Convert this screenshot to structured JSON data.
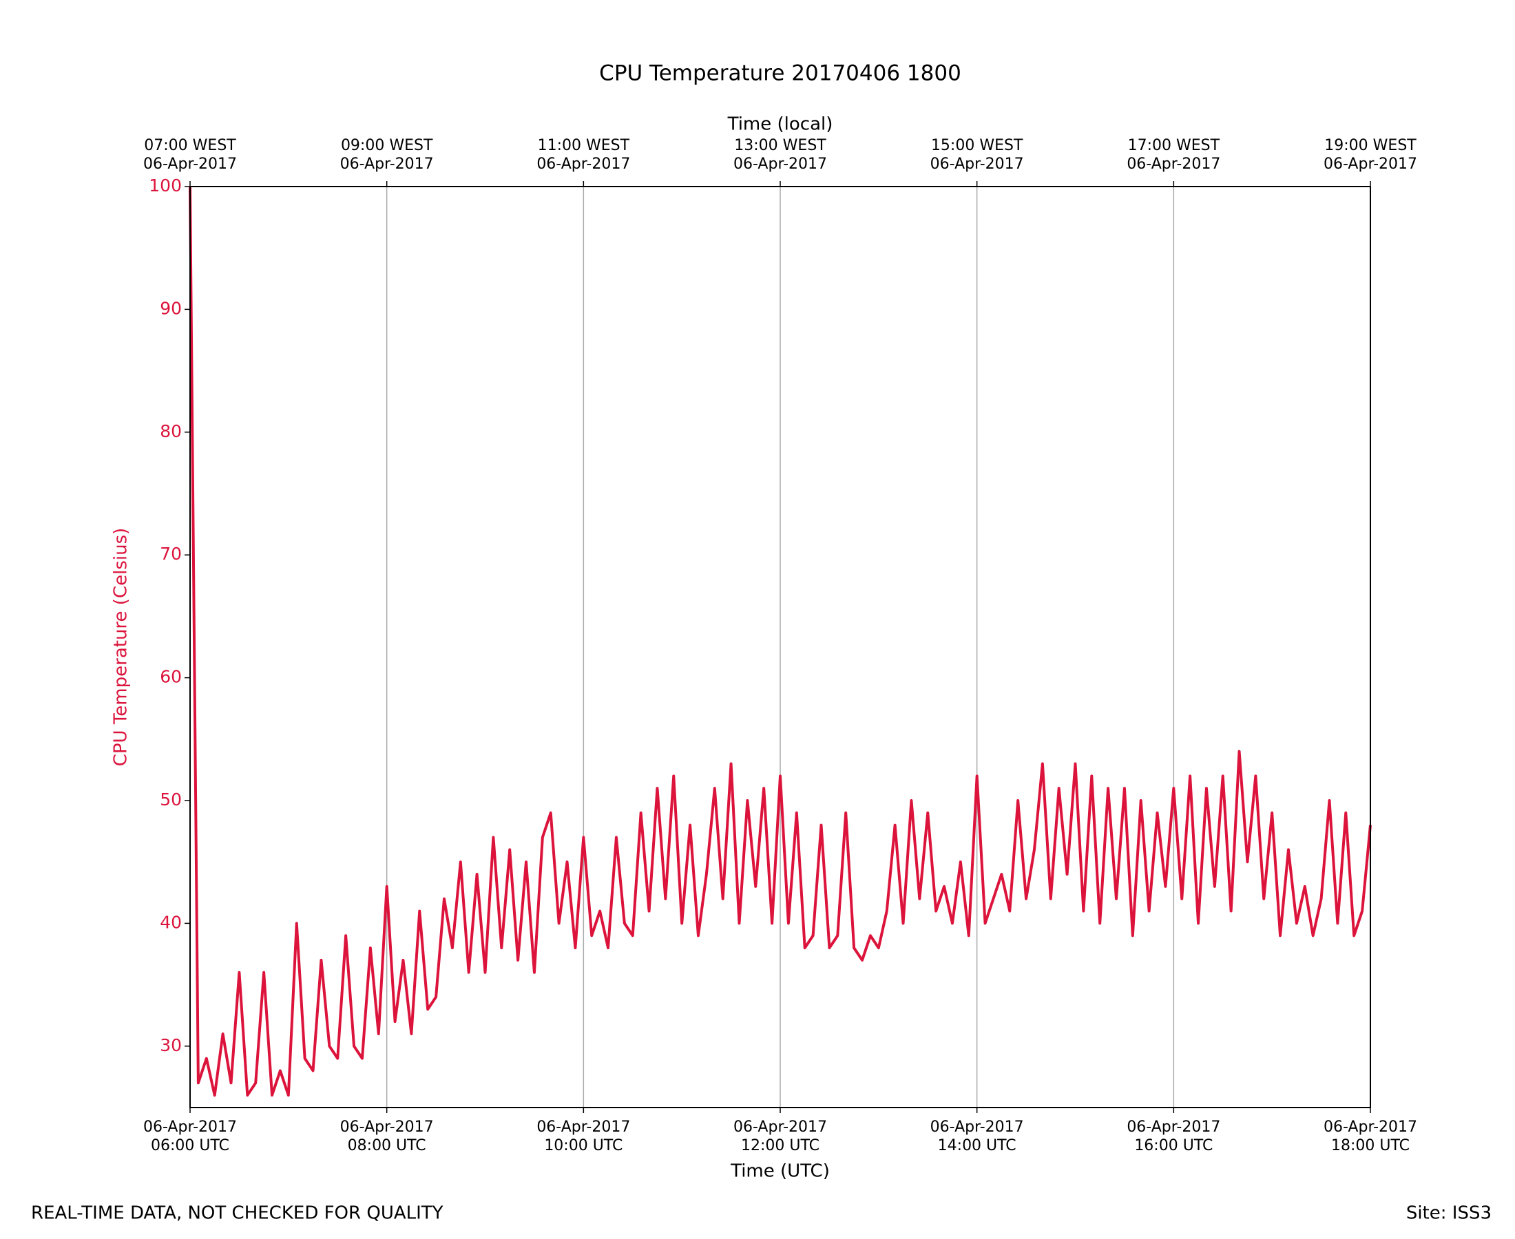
{
  "chart_data": {
    "type": "line",
    "title": "CPU Temperature 20170406 1800",
    "xlabel": "Time (UTC)",
    "x2label": "Time (local)",
    "ylabel": "CPU Temperature (Celsius)",
    "footer_left": "REAL-TIME DATA, NOT CHECKED FOR QUALITY",
    "footer_right": "Site: ISS3",
    "grid": true,
    "xlim": [
      "2017-04-06 06:00",
      "2017-04-06 18:00"
    ],
    "ylim": [
      25,
      100
    ],
    "yticks": [
      30,
      40,
      50,
      60,
      70,
      80,
      90,
      100
    ],
    "xticks": [
      {
        "value": "2017-04-06 06:00",
        "label": [
          "06-Apr-2017",
          "06:00 UTC"
        ]
      },
      {
        "value": "2017-04-06 08:00",
        "label": [
          "06-Apr-2017",
          "08:00 UTC"
        ]
      },
      {
        "value": "2017-04-06 10:00",
        "label": [
          "06-Apr-2017",
          "10:00 UTC"
        ]
      },
      {
        "value": "2017-04-06 12:00",
        "label": [
          "06-Apr-2017",
          "12:00 UTC"
        ]
      },
      {
        "value": "2017-04-06 14:00",
        "label": [
          "06-Apr-2017",
          "14:00 UTC"
        ]
      },
      {
        "value": "2017-04-06 16:00",
        "label": [
          "06-Apr-2017",
          "16:00 UTC"
        ]
      },
      {
        "value": "2017-04-06 18:00",
        "label": [
          "06-Apr-2017",
          "18:00 UTC"
        ]
      }
    ],
    "x2ticks": [
      {
        "value": "2017-04-06 06:00",
        "label": [
          "07:00 WEST",
          "06-Apr-2017"
        ]
      },
      {
        "value": "2017-04-06 08:00",
        "label": [
          "09:00 WEST",
          "06-Apr-2017"
        ]
      },
      {
        "value": "2017-04-06 10:00",
        "label": [
          "11:00 WEST",
          "06-Apr-2017"
        ]
      },
      {
        "value": "2017-04-06 12:00",
        "label": [
          "13:00 WEST",
          "06-Apr-2017"
        ]
      },
      {
        "value": "2017-04-06 14:00",
        "label": [
          "15:00 WEST",
          "06-Apr-2017"
        ]
      },
      {
        "value": "2017-04-06 16:00",
        "label": [
          "17:00 WEST",
          "06-Apr-2017"
        ]
      },
      {
        "value": "2017-04-06 18:00",
        "label": [
          "19:00 WEST",
          "06-Apr-2017"
        ]
      }
    ],
    "x": [
      "2017-04-06 06:00",
      "2017-04-06 06:05",
      "2017-04-06 06:10",
      "2017-04-06 06:15",
      "2017-04-06 06:20",
      "2017-04-06 06:25",
      "2017-04-06 06:30",
      "2017-04-06 06:35",
      "2017-04-06 06:40",
      "2017-04-06 06:45",
      "2017-04-06 06:50",
      "2017-04-06 06:55",
      "2017-04-06 07:00",
      "2017-04-06 07:05",
      "2017-04-06 07:10",
      "2017-04-06 07:15",
      "2017-04-06 07:20",
      "2017-04-06 07:25",
      "2017-04-06 07:30",
      "2017-04-06 07:35",
      "2017-04-06 07:40",
      "2017-04-06 07:45",
      "2017-04-06 07:50",
      "2017-04-06 07:55",
      "2017-04-06 08:00",
      "2017-04-06 08:05",
      "2017-04-06 08:10",
      "2017-04-06 08:15",
      "2017-04-06 08:20",
      "2017-04-06 08:25",
      "2017-04-06 08:30",
      "2017-04-06 08:35",
      "2017-04-06 08:40",
      "2017-04-06 08:45",
      "2017-04-06 08:50",
      "2017-04-06 08:55",
      "2017-04-06 09:00",
      "2017-04-06 09:05",
      "2017-04-06 09:10",
      "2017-04-06 09:15",
      "2017-04-06 09:20",
      "2017-04-06 09:25",
      "2017-04-06 09:30",
      "2017-04-06 09:35",
      "2017-04-06 09:40",
      "2017-04-06 09:45",
      "2017-04-06 09:50",
      "2017-04-06 09:55",
      "2017-04-06 10:00",
      "2017-04-06 10:05",
      "2017-04-06 10:10",
      "2017-04-06 10:15",
      "2017-04-06 10:20",
      "2017-04-06 10:25",
      "2017-04-06 10:30",
      "2017-04-06 10:35",
      "2017-04-06 10:40",
      "2017-04-06 10:45",
      "2017-04-06 10:50",
      "2017-04-06 10:55",
      "2017-04-06 11:00",
      "2017-04-06 11:05",
      "2017-04-06 11:10",
      "2017-04-06 11:15",
      "2017-04-06 11:20",
      "2017-04-06 11:25",
      "2017-04-06 11:30",
      "2017-04-06 11:35",
      "2017-04-06 11:40",
      "2017-04-06 11:45",
      "2017-04-06 11:50",
      "2017-04-06 11:55",
      "2017-04-06 12:00",
      "2017-04-06 12:05",
      "2017-04-06 12:10",
      "2017-04-06 12:15",
      "2017-04-06 12:20",
      "2017-04-06 12:25",
      "2017-04-06 12:30",
      "2017-04-06 12:35",
      "2017-04-06 12:40",
      "2017-04-06 12:45",
      "2017-04-06 12:50",
      "2017-04-06 12:55",
      "2017-04-06 13:00",
      "2017-04-06 13:05",
      "2017-04-06 13:10",
      "2017-04-06 13:15",
      "2017-04-06 13:20",
      "2017-04-06 13:25",
      "2017-04-06 13:30",
      "2017-04-06 13:35",
      "2017-04-06 13:40",
      "2017-04-06 13:45",
      "2017-04-06 13:50",
      "2017-04-06 13:55",
      "2017-04-06 14:00",
      "2017-04-06 14:05",
      "2017-04-06 14:10",
      "2017-04-06 14:15",
      "2017-04-06 14:20",
      "2017-04-06 14:25",
      "2017-04-06 14:30",
      "2017-04-06 14:35",
      "2017-04-06 14:40",
      "2017-04-06 14:45",
      "2017-04-06 14:50",
      "2017-04-06 14:55",
      "2017-04-06 15:00",
      "2017-04-06 15:05",
      "2017-04-06 15:10",
      "2017-04-06 15:15",
      "2017-04-06 15:20",
      "2017-04-06 15:25",
      "2017-04-06 15:30",
      "2017-04-06 15:35",
      "2017-04-06 15:40",
      "2017-04-06 15:45",
      "2017-04-06 15:50",
      "2017-04-06 15:55",
      "2017-04-06 16:00",
      "2017-04-06 16:05",
      "2017-04-06 16:10",
      "2017-04-06 16:15",
      "2017-04-06 16:20",
      "2017-04-06 16:25",
      "2017-04-06 16:30",
      "2017-04-06 16:35",
      "2017-04-06 16:40",
      "2017-04-06 16:45",
      "2017-04-06 16:50",
      "2017-04-06 16:55",
      "2017-04-06 17:00",
      "2017-04-06 17:05",
      "2017-04-06 17:10",
      "2017-04-06 17:15",
      "2017-04-06 17:20",
      "2017-04-06 17:25",
      "2017-04-06 17:30",
      "2017-04-06 17:35",
      "2017-04-06 17:40",
      "2017-04-06 17:45",
      "2017-04-06 17:50",
      "2017-04-06 17:55",
      "2017-04-06 18:00"
    ],
    "series": [
      {
        "name": "CPU Temperature",
        "color": "#dc143c",
        "values": [
          100,
          27,
          29,
          26,
          31,
          27,
          36,
          26,
          27,
          36,
          26,
          28,
          26,
          40,
          29,
          28,
          37,
          30,
          29,
          39,
          30,
          29,
          38,
          31,
          43,
          32,
          37,
          31,
          41,
          33,
          34,
          42,
          38,
          45,
          36,
          44,
          36,
          47,
          38,
          46,
          37,
          45,
          36,
          47,
          49,
          40,
          45,
          38,
          47,
          39,
          41,
          38,
          47,
          40,
          39,
          49,
          41,
          51,
          42,
          52,
          40,
          48,
          39,
          44,
          51,
          42,
          53,
          40,
          50,
          43,
          51,
          40,
          52,
          40,
          49,
          38,
          39,
          48,
          38,
          39,
          49,
          38,
          37,
          39,
          38,
          41,
          48,
          40,
          50,
          42,
          49,
          41,
          43,
          40,
          45,
          39,
          52,
          40,
          42,
          44,
          41,
          50,
          42,
          46,
          53,
          42,
          51,
          44,
          53,
          41,
          52,
          40,
          51,
          42,
          51,
          39,
          50,
          41,
          49,
          43,
          51,
          42,
          52,
          40,
          51,
          43,
          52,
          41,
          54,
          45,
          52,
          42,
          49,
          39,
          46,
          40,
          43,
          39,
          42,
          50,
          40,
          49,
          39,
          41,
          48
        ]
      }
    ]
  }
}
